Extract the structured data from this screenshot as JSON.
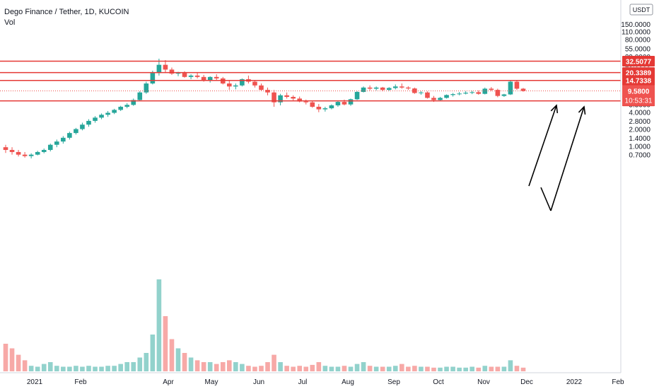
{
  "title": "Dego Finance / Tether, 1D, KUCOIN",
  "vol_label": "Vol",
  "currency": "USDT",
  "colors": {
    "up": "#26a69a",
    "down": "#ef5350",
    "level": "#e53935",
    "price_tag": "#ef5350"
  },
  "chart_data": {
    "type": "candlestick",
    "scale": "log",
    "x_tick_labels": [
      "2021",
      "Feb",
      "Apr",
      "May",
      "Jun",
      "Jul",
      "Aug",
      "Sep",
      "Oct",
      "Nov",
      "Dec",
      "2022",
      "Feb"
    ],
    "y_tick_labels": [
      "150.0000",
      "110.0000",
      "80.0000",
      "55.0000",
      "39.0000",
      "29.0000",
      "11.0000",
      "5.5000",
      "4.0000",
      "2.8000",
      "2.0000",
      "1.4000",
      "1.0000",
      "0.7000"
    ],
    "horizontal_levels": [
      {
        "label": "32.5077",
        "value": 32.5077
      },
      {
        "label": "20.3389",
        "value": 20.3389
      },
      {
        "label": "14.7338",
        "value": 14.7338
      },
      {
        "label": "6.3595",
        "value": 6.3595
      }
    ],
    "last_price": {
      "label": "9.5800",
      "value": 9.58,
      "countdown": "10:53:31"
    },
    "series": [
      {
        "values": [
          [
            0.95,
            1.05,
            0.75,
            0.85
          ],
          [
            0.85,
            0.95,
            0.7,
            0.78
          ],
          [
            0.78,
            0.85,
            0.65,
            0.7
          ],
          [
            0.7,
            0.78,
            0.62,
            0.66
          ],
          [
            0.66,
            0.74,
            0.6,
            0.7
          ],
          [
            0.7,
            0.82,
            0.68,
            0.78
          ],
          [
            0.78,
            0.9,
            0.74,
            0.85
          ],
          [
            0.85,
            1.1,
            0.8,
            1.05
          ],
          [
            1.05,
            1.3,
            0.95,
            1.2
          ],
          [
            1.2,
            1.5,
            1.1,
            1.4
          ],
          [
            1.4,
            1.8,
            1.3,
            1.7
          ],
          [
            1.7,
            2.1,
            1.6,
            2.0
          ],
          [
            2.0,
            2.6,
            1.9,
            2.4
          ],
          [
            2.4,
            3.0,
            2.2,
            2.8
          ],
          [
            2.8,
            3.4,
            2.6,
            3.2
          ],
          [
            3.2,
            3.8,
            3.0,
            3.6
          ],
          [
            3.6,
            4.2,
            3.3,
            3.9
          ],
          [
            3.9,
            4.6,
            3.7,
            4.4
          ],
          [
            4.4,
            5.2,
            4.2,
            5.0
          ],
          [
            5.0,
            5.8,
            4.7,
            5.4
          ],
          [
            5.4,
            7.0,
            5.2,
            6.6
          ],
          [
            6.6,
            9.5,
            6.4,
            9.0
          ],
          [
            9.0,
            14.0,
            8.5,
            13.0
          ],
          [
            13.0,
            22.0,
            12.5,
            20.0
          ],
          [
            20.0,
            36.0,
            18.0,
            28.0
          ],
          [
            28.0,
            34.0,
            20.0,
            23.0
          ],
          [
            23.0,
            25.0,
            18.5,
            19.5
          ],
          [
            19.5,
            21.0,
            17.5,
            20.0
          ],
          [
            20.0,
            21.5,
            16.5,
            17.0
          ],
          [
            17.0,
            19.0,
            15.5,
            18.0
          ],
          [
            18.0,
            20.5,
            16.0,
            17.0
          ],
          [
            17.0,
            18.5,
            14.0,
            15.0
          ],
          [
            15.0,
            17.5,
            13.5,
            17.0
          ],
          [
            17.0,
            19.0,
            15.0,
            16.0
          ],
          [
            16.0,
            17.0,
            12.5,
            13.0
          ],
          [
            13.0,
            14.5,
            10.0,
            11.5
          ],
          [
            11.5,
            13.0,
            10.2,
            12.0
          ],
          [
            12.0,
            16.0,
            11.5,
            15.5
          ],
          [
            15.5,
            18.0,
            13.0,
            14.0
          ],
          [
            14.0,
            15.0,
            11.0,
            12.0
          ],
          [
            12.0,
            13.0,
            9.5,
            10.0
          ],
          [
            10.0,
            11.0,
            8.0,
            9.0
          ],
          [
            9.0,
            10.0,
            5.0,
            6.0
          ],
          [
            6.0,
            8.5,
            5.3,
            8.0
          ],
          [
            8.0,
            9.0,
            7.0,
            7.5
          ],
          [
            7.5,
            8.0,
            6.5,
            7.0
          ],
          [
            7.0,
            7.6,
            6.0,
            6.2
          ],
          [
            6.2,
            6.7,
            5.5,
            6.0
          ],
          [
            6.0,
            6.4,
            4.8,
            5.0
          ],
          [
            5.0,
            5.6,
            4.0,
            4.5
          ],
          [
            4.5,
            5.0,
            4.1,
            4.7
          ],
          [
            4.7,
            5.5,
            4.5,
            5.3
          ],
          [
            5.3,
            6.3,
            5.0,
            6.1
          ],
          [
            6.1,
            6.7,
            5.3,
            5.5
          ],
          [
            5.5,
            7.0,
            5.2,
            6.8
          ],
          [
            6.8,
            9.5,
            6.6,
            9.2
          ],
          [
            9.2,
            11.5,
            9.0,
            11.0
          ],
          [
            11.0,
            12.0,
            9.8,
            10.5
          ],
          [
            10.5,
            11.5,
            9.8,
            11.0
          ],
          [
            11.0,
            11.3,
            9.5,
            10.0
          ],
          [
            10.0,
            11.2,
            9.6,
            10.8
          ],
          [
            10.8,
            12.5,
            10.2,
            11.5
          ],
          [
            11.5,
            13.0,
            10.5,
            11.0
          ],
          [
            11.0,
            11.6,
            10.0,
            10.6
          ],
          [
            10.6,
            11.0,
            8.5,
            8.8
          ],
          [
            8.8,
            9.5,
            8.2,
            9.0
          ],
          [
            9.0,
            9.4,
            7.0,
            7.2
          ],
          [
            7.2,
            7.8,
            6.1,
            6.6
          ],
          [
            6.6,
            7.5,
            6.3,
            7.2
          ],
          [
            7.2,
            8.3,
            7.0,
            8.1
          ],
          [
            8.1,
            8.8,
            7.6,
            8.4
          ],
          [
            8.4,
            9.2,
            8.0,
            8.6
          ],
          [
            8.6,
            9.5,
            8.3,
            8.9
          ],
          [
            8.9,
            9.6,
            8.4,
            9.1
          ],
          [
            9.1,
            9.8,
            8.2,
            8.5
          ],
          [
            8.5,
            11.0,
            8.3,
            10.5
          ],
          [
            10.5,
            11.2,
            9.5,
            10.0
          ],
          [
            10.0,
            10.5,
            7.4,
            7.8
          ],
          [
            7.8,
            8.5,
            7.5,
            8.3
          ],
          [
            8.3,
            15.0,
            8.1,
            14.0
          ],
          [
            14.0,
            14.5,
            10.0,
            10.5
          ],
          [
            10.5,
            10.8,
            9.3,
            9.58
          ]
        ]
      }
    ],
    "volume_relative": [
      0.3,
      0.25,
      0.18,
      0.12,
      0.06,
      0.05,
      0.08,
      0.1,
      0.06,
      0.05,
      0.05,
      0.06,
      0.05,
      0.06,
      0.05,
      0.05,
      0.06,
      0.06,
      0.08,
      0.1,
      0.1,
      0.15,
      0.2,
      0.4,
      1.0,
      0.6,
      0.35,
      0.25,
      0.2,
      0.15,
      0.12,
      0.1,
      0.1,
      0.08,
      0.1,
      0.12,
      0.1,
      0.08,
      0.06,
      0.05,
      0.06,
      0.1,
      0.18,
      0.1,
      0.06,
      0.05,
      0.06,
      0.05,
      0.07,
      0.1,
      0.06,
      0.05,
      0.05,
      0.06,
      0.05,
      0.08,
      0.1,
      0.06,
      0.05,
      0.05,
      0.05,
      0.06,
      0.08,
      0.05,
      0.06,
      0.05,
      0.05,
      0.04,
      0.04,
      0.05,
      0.05,
      0.04,
      0.04,
      0.05,
      0.04,
      0.06,
      0.05,
      0.05,
      0.05,
      0.12,
      0.06,
      0.04
    ],
    "annotation_arrows": [
      {
        "from": [
          9.0,
          "Dec"
        ],
        "to": [
          32.5,
          "Dec"
        ]
      },
      {
        "from": [
          9.0,
          "Dec"
        ],
        "to": [
          6.0,
          "Dec"
        ]
      },
      {
        "from": [
          6.0,
          "Dec"
        ],
        "to": [
          32.5,
          "2022"
        ]
      }
    ]
  }
}
